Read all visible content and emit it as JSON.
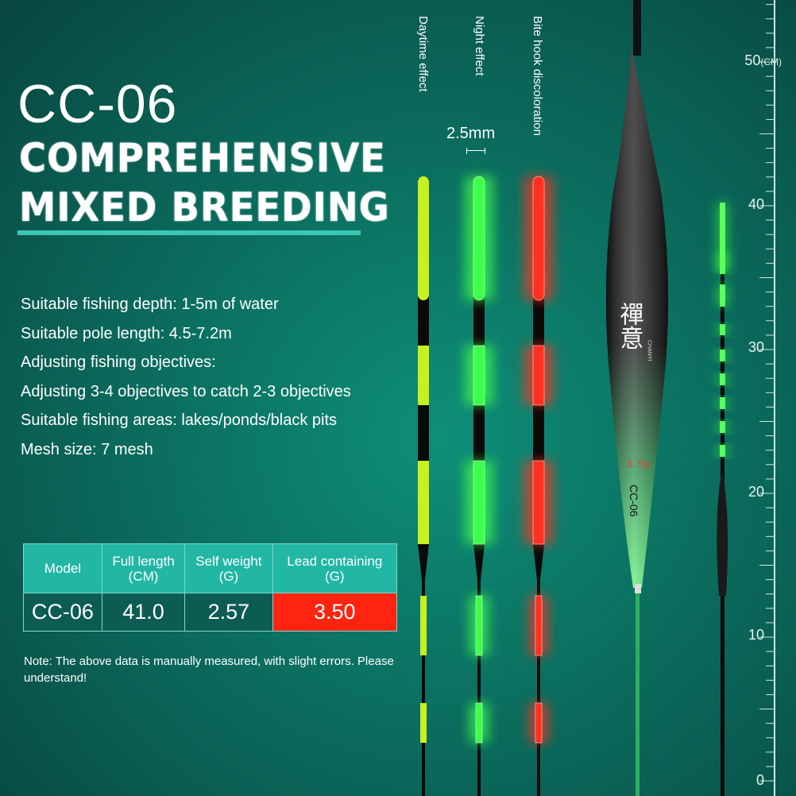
{
  "title": "CC-06",
  "headline": [
    "COMPREHENSIVE",
    "MIXED BREEDING"
  ],
  "specs": [
    "Suitable fishing depth: 1-5m of water",
    "Suitable pole length: 4.5-7.2m",
    "Adjusting fishing objectives:",
    "Adjusting 3-4 objectives to catch 2-3 objectives",
    "Suitable fishing areas: lakes/ponds/black pits",
    "Mesh size: 7 mesh"
  ],
  "table": {
    "headers": [
      [
        "Model",
        ""
      ],
      [
        "Full length",
        "(CM)"
      ],
      [
        "Self weight",
        "(G)"
      ],
      [
        "Lead containing",
        "(G)"
      ]
    ],
    "row": [
      "CC-06",
      "41.0",
      "2.57",
      "3.50"
    ]
  },
  "note": "Note: The above data is manually measured, with slight errors. Please understand!",
  "effects": [
    "Daytime effect",
    "Night effect",
    "Bite hook discoloration"
  ],
  "tip_diameter": "2.5mm",
  "float_marks": {
    "brand_cn": "禪意",
    "brand_en": "CHANYI",
    "weight": "3. 5g",
    "model": "CC-06"
  },
  "ruler": {
    "unit": "(CM)",
    "labels": [
      "50",
      "40",
      "30",
      "20",
      "10",
      "0"
    ]
  },
  "colors": {
    "day": "#c8f020",
    "night": "#3dff4a",
    "bite": "#ff3020",
    "accent": "#22b6a4"
  }
}
